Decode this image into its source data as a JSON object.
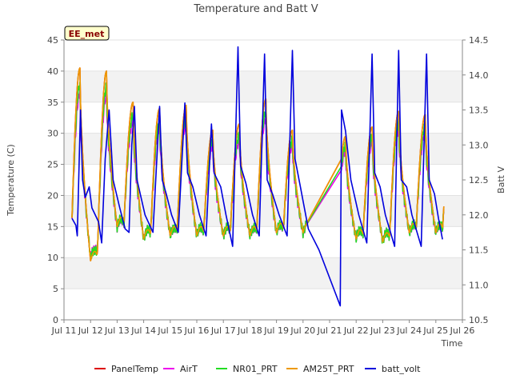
{
  "chart_data": {
    "type": "line",
    "title": "Temperature and Batt V",
    "badge": "EE_met",
    "xlabel": "Time",
    "ylabel_left": "Temperature (C)",
    "ylabel_right": "Batt V",
    "xlim": [
      11,
      26
    ],
    "ylim_left": [
      0,
      45
    ],
    "ylim_right": [
      10.5,
      14.5
    ],
    "x_ticks": [
      "Jul 11",
      "Jul 12",
      "Jul 13",
      "Jul 14",
      "Jul 15",
      "Jul 16",
      "Jul 17",
      "Jul 18",
      "Jul 19",
      "Jul 20",
      "Jul 21",
      "Jul 22",
      "Jul 23",
      "Jul 24",
      "Jul 25",
      "Jul 26"
    ],
    "y_ticks_left": [
      0,
      5,
      10,
      15,
      20,
      25,
      30,
      35,
      40,
      45
    ],
    "y_ticks_right": [
      10.5,
      11.0,
      11.5,
      12.0,
      12.5,
      13.0,
      13.5,
      14.0,
      14.5
    ],
    "grid": "horizontal bands",
    "legend_position": "bottom",
    "temperature_days": [
      {
        "day": 11,
        "min": 9.5,
        "max": 40.5
      },
      {
        "day": 12,
        "min": 9.5,
        "max": 40.0
      },
      {
        "day": 13,
        "min": 15.0,
        "max": 35.0
      },
      {
        "day": 14,
        "min": 13.0,
        "max": 34.0
      },
      {
        "day": 15,
        "min": 13.5,
        "max": 34.5
      },
      {
        "day": 16,
        "min": 13.5,
        "max": 30.5
      },
      {
        "day": 17,
        "min": 13.5,
        "max": 31.5
      },
      {
        "day": 18,
        "min": 13.5,
        "max": 35.5
      },
      {
        "day": 19,
        "min": 14.0,
        "max": 30.5
      },
      {
        "day": 21,
        "min": 13.0,
        "max": 29.5
      },
      {
        "day": 22,
        "min": 13.0,
        "max": 31.0
      },
      {
        "day": 23,
        "min": 12.5,
        "max": 33.5
      },
      {
        "day": 24,
        "min": 14.0,
        "max": 33.0
      }
    ],
    "series": [
      {
        "name": "PanelTemp",
        "color": "#dd0000",
        "axis": "left",
        "scale": 1.0
      },
      {
        "name": "AirT",
        "color": "#ee00ee",
        "axis": "left",
        "scale": 0.85
      },
      {
        "name": "NR01_PRT",
        "color": "#22dd22",
        "axis": "left",
        "scale": 0.9
      },
      {
        "name": "AM25T_PRT",
        "color": "#ee9900",
        "axis": "left",
        "scale": 1.0
      },
      {
        "name": "batt_volt",
        "color": "#0000dd",
        "axis": "right",
        "points": [
          [
            11.3,
            11.95
          ],
          [
            11.45,
            11.85
          ],
          [
            11.5,
            11.7
          ],
          [
            11.62,
            13.5
          ],
          [
            11.7,
            12.5
          ],
          [
            11.8,
            12.25
          ],
          [
            11.95,
            12.4
          ],
          [
            12.05,
            12.1
          ],
          [
            12.3,
            11.9
          ],
          [
            12.42,
            11.6
          ],
          [
            12.55,
            12.8
          ],
          [
            12.7,
            13.5
          ],
          [
            12.85,
            12.5
          ],
          [
            13.1,
            12.1
          ],
          [
            13.3,
            11.8
          ],
          [
            13.45,
            11.75
          ],
          [
            13.55,
            13.0
          ],
          [
            13.65,
            13.55
          ],
          [
            13.75,
            12.5
          ],
          [
            14.05,
            12.0
          ],
          [
            14.35,
            11.75
          ],
          [
            14.6,
            13.55
          ],
          [
            14.7,
            12.5
          ],
          [
            14.85,
            12.3
          ],
          [
            15.05,
            12.0
          ],
          [
            15.3,
            11.75
          ],
          [
            15.55,
            13.6
          ],
          [
            15.65,
            12.6
          ],
          [
            15.85,
            12.4
          ],
          [
            16.1,
            12.0
          ],
          [
            16.35,
            11.7
          ],
          [
            16.55,
            13.3
          ],
          [
            16.65,
            12.6
          ],
          [
            16.9,
            12.4
          ],
          [
            17.1,
            12.0
          ],
          [
            17.35,
            11.55
          ],
          [
            17.55,
            14.4
          ],
          [
            17.65,
            12.7
          ],
          [
            17.85,
            12.45
          ],
          [
            18.1,
            12.0
          ],
          [
            18.35,
            11.7
          ],
          [
            18.55,
            14.3
          ],
          [
            18.65,
            12.5
          ],
          [
            18.85,
            12.3
          ],
          [
            19.1,
            12.0
          ],
          [
            19.4,
            11.7
          ],
          [
            19.6,
            14.35
          ],
          [
            19.7,
            12.8
          ],
          [
            19.9,
            12.4
          ],
          [
            20.2,
            11.8
          ],
          [
            20.6,
            11.5
          ],
          [
            21.4,
            10.7
          ],
          [
            21.45,
            13.5
          ],
          [
            21.6,
            13.2
          ],
          [
            21.8,
            12.5
          ],
          [
            22.1,
            12.0
          ],
          [
            22.4,
            11.6
          ],
          [
            22.6,
            14.3
          ],
          [
            22.7,
            12.6
          ],
          [
            22.9,
            12.4
          ],
          [
            23.1,
            12.0
          ],
          [
            23.45,
            11.55
          ],
          [
            23.6,
            14.35
          ],
          [
            23.7,
            12.5
          ],
          [
            23.9,
            12.4
          ],
          [
            24.1,
            12.0
          ],
          [
            24.45,
            11.55
          ],
          [
            24.65,
            14.3
          ],
          [
            24.75,
            12.5
          ],
          [
            24.95,
            12.3
          ],
          [
            25.1,
            11.95
          ],
          [
            25.25,
            11.65
          ]
        ]
      }
    ]
  }
}
